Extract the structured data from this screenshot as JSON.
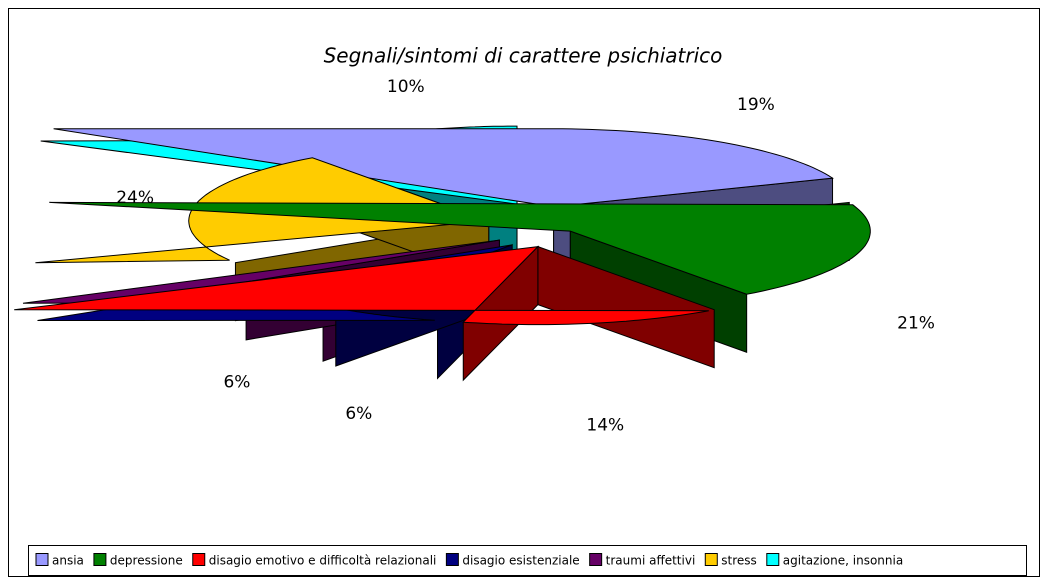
{
  "chart_data": {
    "type": "pie",
    "title": "Segnali/sintomi di carattere psichiatrico",
    "categories": [
      "ansia",
      "depressione",
      "disagio emotivo e difficoltà relazionali",
      "disagio esistenziale",
      "traumi affettivi",
      "stress",
      "agitazione, insonnia"
    ],
    "values": [
      19,
      21,
      14,
      6,
      6,
      24,
      10
    ],
    "value_labels": [
      "19%",
      "21%",
      "14%",
      "6%",
      "6%",
      "24%",
      "10%"
    ],
    "colors": [
      "#9999ff",
      "#008000",
      "#ff0000",
      "#000080",
      "#660066",
      "#ffcc00",
      "#00ffff"
    ],
    "legend": "bottom"
  }
}
